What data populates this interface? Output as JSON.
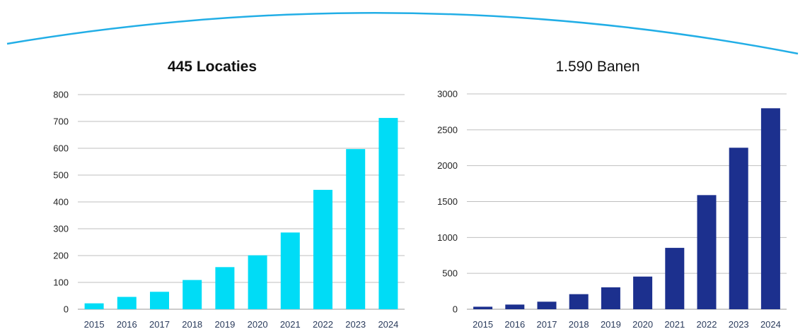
{
  "chart_data": [
    {
      "type": "bar",
      "title": "445 Locaties",
      "title_bold": true,
      "categories": [
        "2015",
        "2016",
        "2017",
        "2018",
        "2019",
        "2020",
        "2021",
        "2022",
        "2023",
        "2024"
      ],
      "values": [
        22,
        46,
        65,
        109,
        157,
        201,
        286,
        445,
        597,
        713
      ],
      "ylim": [
        0,
        800
      ],
      "yticks": [
        0,
        100,
        200,
        300,
        400,
        500,
        600,
        700,
        800
      ],
      "grid": true,
      "bar_color": "#00dcf6",
      "xlabel": "",
      "ylabel": ""
    },
    {
      "type": "bar",
      "title": "1.590 Banen",
      "title_bold": false,
      "categories": [
        "2015",
        "2016",
        "2017",
        "2018",
        "2019",
        "2020",
        "2021",
        "2022",
        "2023",
        "2024"
      ],
      "values": [
        35,
        65,
        105,
        210,
        305,
        455,
        855,
        1590,
        2250,
        2800
      ],
      "ylim": [
        0,
        3000
      ],
      "yticks": [
        0,
        500,
        1000,
        1500,
        2000,
        2500,
        3000
      ],
      "grid": true,
      "bar_color": "#1c308e",
      "xlabel": "",
      "ylabel": ""
    }
  ],
  "colors": {
    "decorative_arc": "#22aee6"
  }
}
